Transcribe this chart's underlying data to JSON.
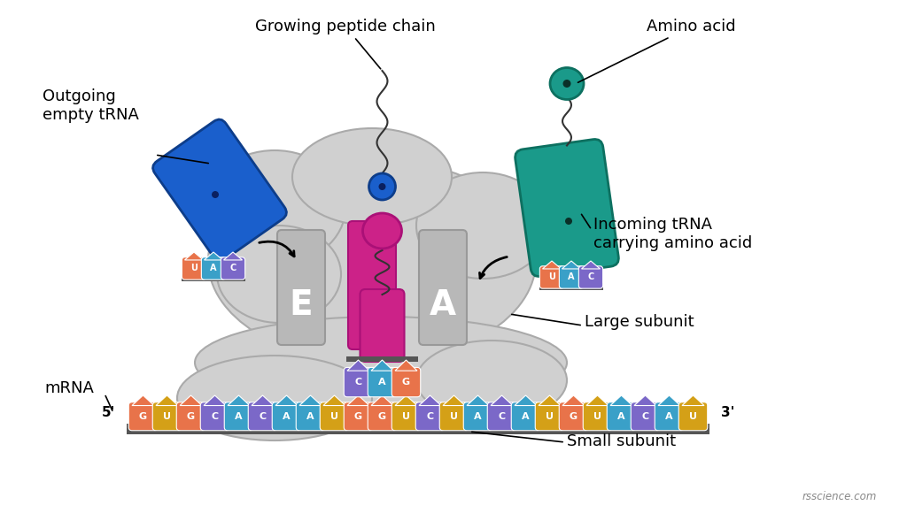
{
  "bg_color": "#ffffff",
  "mrna_sequence": [
    "G",
    "U",
    "G",
    "C",
    "A",
    "C",
    "A",
    "A",
    "U",
    "G",
    "G",
    "U",
    "C",
    "U",
    "A",
    "C",
    "A",
    "U",
    "G",
    "U",
    "A",
    "C",
    "A",
    "U"
  ],
  "mrna_colors": {
    "G": "#e8734a",
    "U": "#d4a017",
    "C": "#7b68c8",
    "A": "#3aa0c8"
  },
  "codon_in_p": [
    "C",
    "A",
    "G"
  ],
  "large_subunit_color": "#d0d0d0",
  "small_subunit_color": "#d0d0d0",
  "site_e_color": "#b8b8b8",
  "site_p_color": "#cc2288",
  "site_a_color": "#b8b8b8",
  "trna_body_blue": "#1a5fcc",
  "trna_body_teal": "#1a9a8a",
  "uac_colors": [
    "#e8734a",
    "#3aa0c8",
    "#7b68c8"
  ],
  "labels": {
    "growing_peptide": "Growing peptide chain",
    "amino_acid": "Amino acid",
    "outgoing_trna": "Outgoing\nempty tRNA",
    "incoming_trna": "Incoming tRNA\ncarrying amino acid",
    "large_subunit": "Large subunit",
    "small_subunit": "Small subunit",
    "mrna": "mRNA",
    "five_prime": "5'",
    "three_prime": "3'",
    "watermark": "rsscience.com"
  }
}
